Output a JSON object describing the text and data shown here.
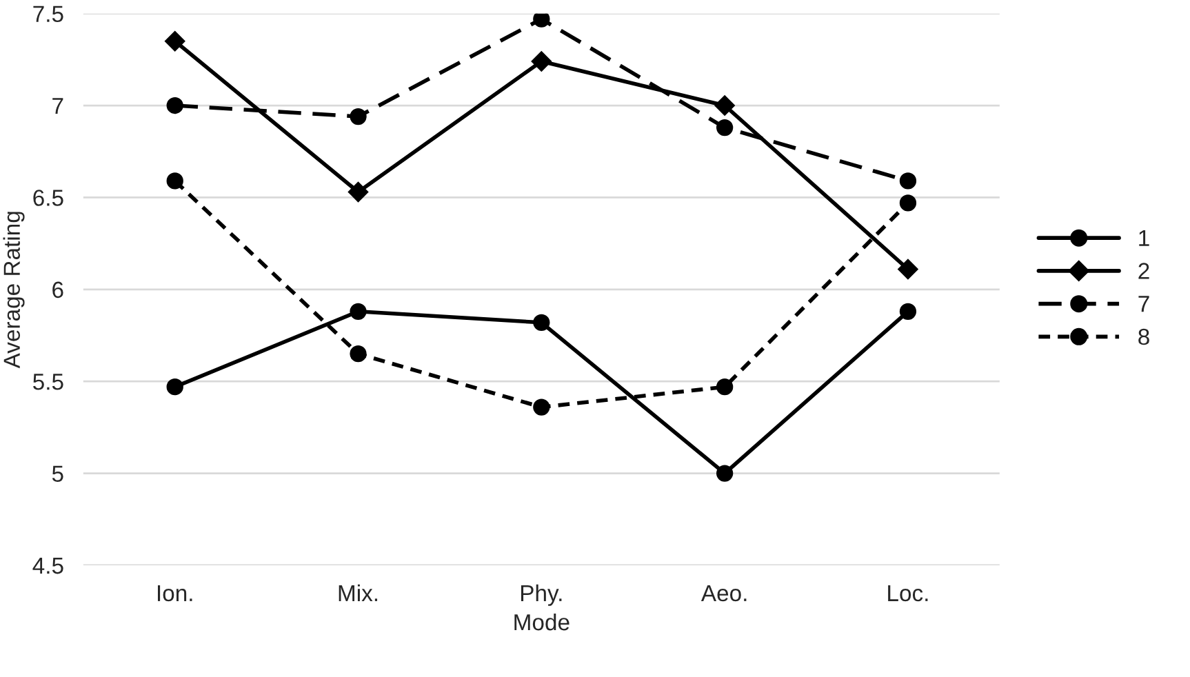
{
  "chart_data": {
    "type": "line",
    "xlabel": "Mode",
    "ylabel": "Average Rating",
    "categories": [
      "Ion.",
      "Mix.",
      "Phy.",
      "Aeo.",
      "Loc."
    ],
    "series": [
      {
        "name": "1",
        "color": "#000000",
        "marker": "circle",
        "line_style": "solid",
        "values": [
          5.47,
          5.88,
          5.82,
          5.0,
          5.88
        ]
      },
      {
        "name": "2",
        "color": "#000000",
        "marker": "diamond",
        "line_style": "solid",
        "values": [
          7.35,
          6.53,
          7.24,
          7.0,
          6.11
        ]
      },
      {
        "name": "7",
        "color": "#000000",
        "marker": "circle",
        "line_style": "dashed",
        "values": [
          7.0,
          6.94,
          7.47,
          6.88,
          6.59
        ]
      },
      {
        "name": "8",
        "color": "#000000",
        "marker": "circle",
        "line_style": "dotted",
        "values": [
          6.59,
          5.65,
          5.36,
          5.47,
          6.47
        ]
      }
    ],
    "ylim": [
      4.5,
      7.5
    ],
    "yticks": [
      4.5,
      5,
      5.5,
      6,
      6.5,
      7,
      7.5
    ],
    "grid": "y",
    "legend": "right"
  }
}
